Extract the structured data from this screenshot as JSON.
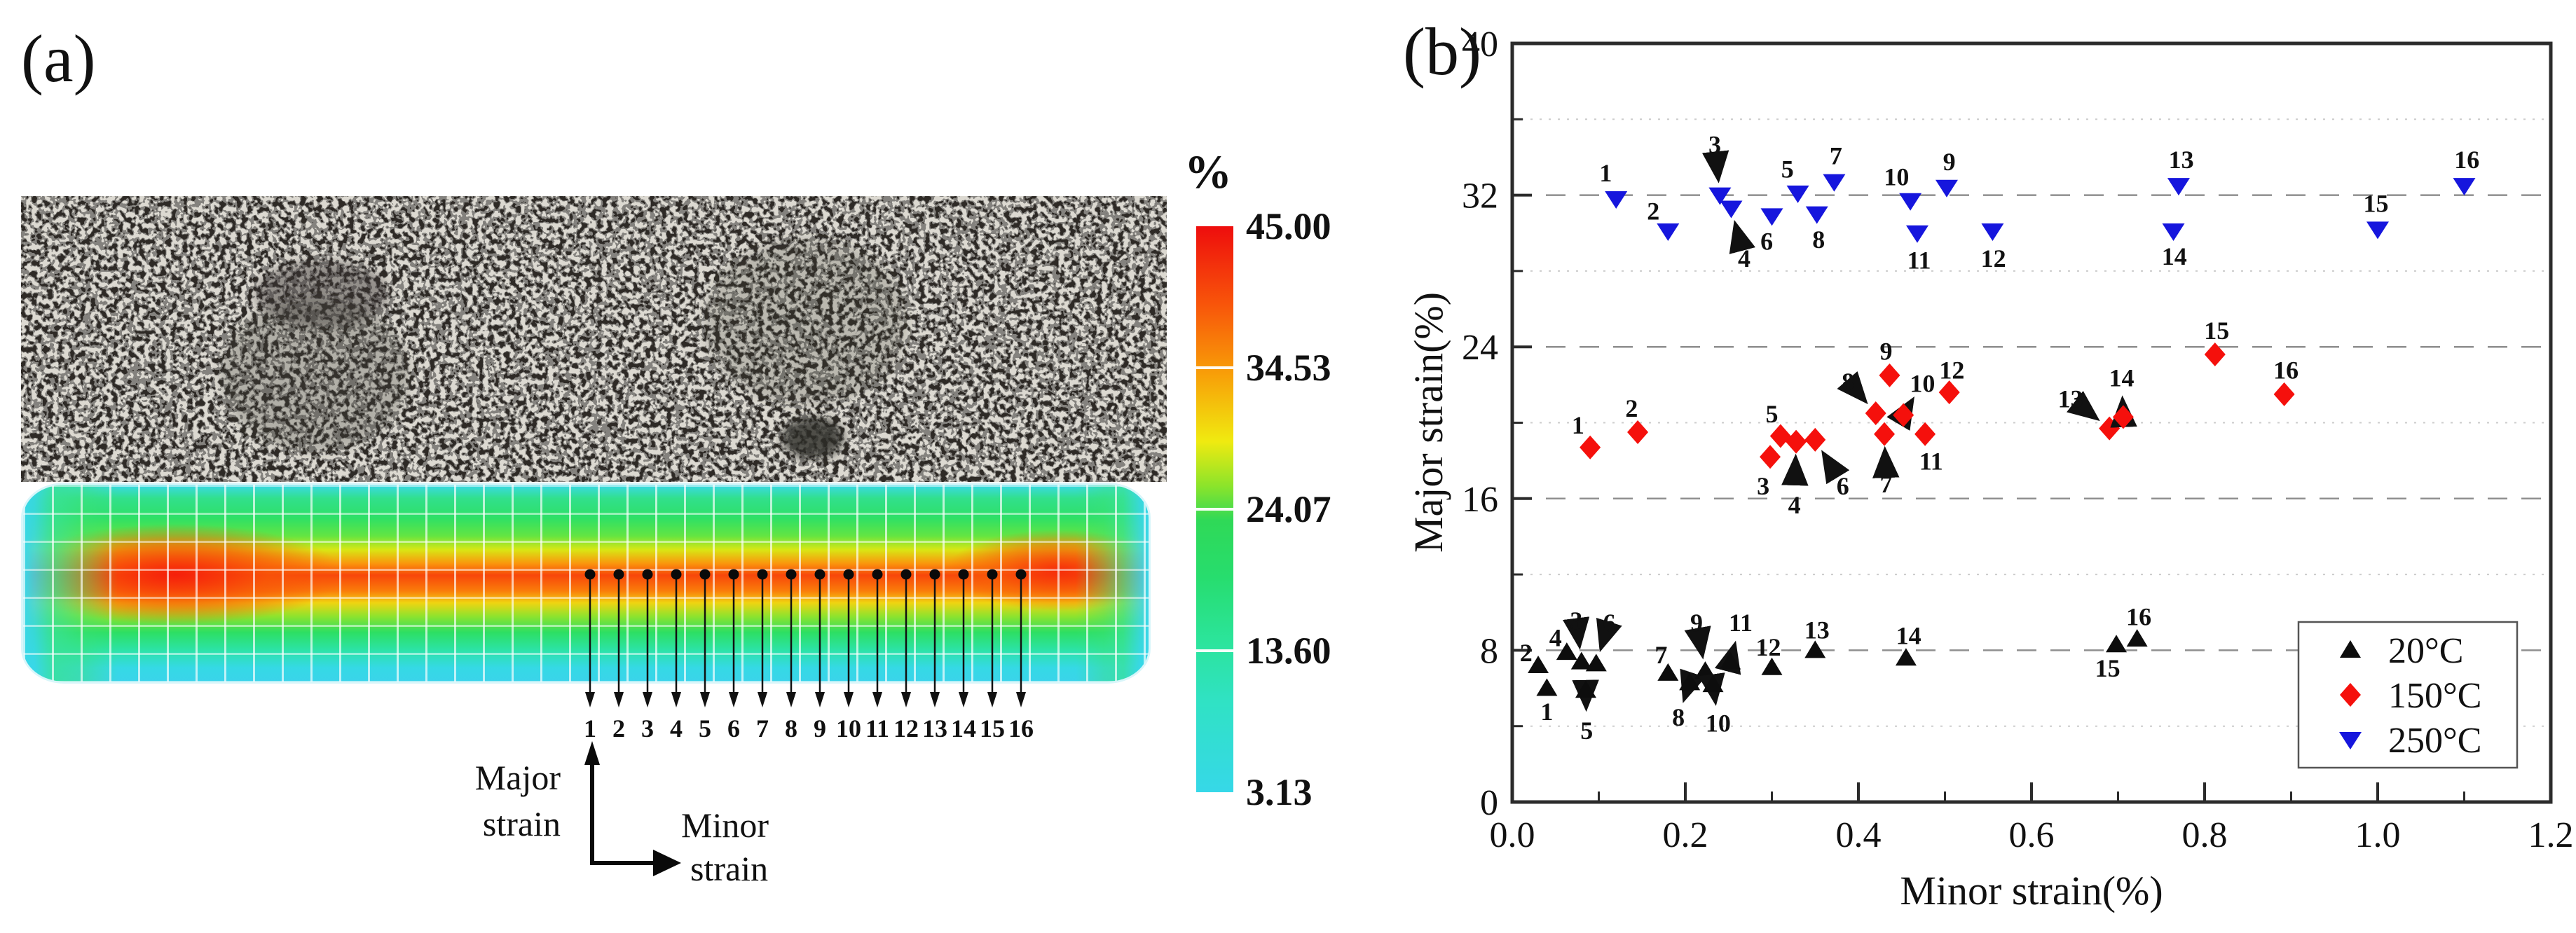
{
  "figure": {
    "panel_a_label": "(a)",
    "panel_b_label": "(b)"
  },
  "panel_a": {
    "colorbar": {
      "unit": "%",
      "tick_labels": [
        "45.00",
        "34.53",
        "24.07",
        "13.60",
        "3.13"
      ]
    },
    "probe_points": [
      "1",
      "2",
      "3",
      "4",
      "5",
      "6",
      "7",
      "8",
      "9",
      "10",
      "11",
      "12",
      "13",
      "14",
      "15",
      "16"
    ],
    "axis_glyph": {
      "major_line1": "Major",
      "major_line2": "strain",
      "minor_line1": "Minor",
      "minor_line2": "strain"
    }
  },
  "chart_data": {
    "type": "scatter",
    "title": "",
    "xlabel": "Minor strain(%)",
    "ylabel": "Major strain(%)",
    "xlim": [
      0,
      1.2
    ],
    "ylim": [
      0,
      40
    ],
    "x_ticks": [
      "0.0",
      "0.2",
      "0.4",
      "0.6",
      "0.8",
      "1.0",
      "1.2"
    ],
    "x_tick_values": [
      0,
      0.2,
      0.4,
      0.6,
      0.8,
      1.0,
      1.2
    ],
    "x_minor_ticks": [
      0.1,
      0.3,
      0.5,
      0.7,
      0.9,
      1.1
    ],
    "y_ticks": [
      "0",
      "8",
      "16",
      "24",
      "32",
      "40"
    ],
    "y_tick_values": [
      0,
      8,
      16,
      24,
      32,
      40
    ],
    "y_minor_ticks": [
      4,
      12,
      20,
      28,
      36
    ],
    "grid": {
      "major_dashed": [
        8,
        16,
        24,
        32
      ],
      "minor_dotted": [
        4,
        12,
        20,
        28,
        36
      ]
    },
    "legend": {
      "position": "lower right",
      "entries": [
        {
          "label": "20°C",
          "marker": "triangle-up",
          "color": "#0d0d0d"
        },
        {
          "label": "150°C",
          "marker": "diamond",
          "color": "#f5100c"
        },
        {
          "label": "250°C",
          "marker": "triangle-down",
          "color": "#1616dd"
        }
      ]
    },
    "series": [
      {
        "name": "20°C",
        "marker": "triangle-up",
        "color": "#0d0d0d",
        "points": [
          {
            "l": "1",
            "x": 0.04,
            "y": 6.0,
            "lx": 0.04,
            "ly": 4.8,
            "a": 0
          },
          {
            "l": "2",
            "x": 0.03,
            "y": 7.2,
            "lx": 0.016,
            "ly": 7.9,
            "a": 0
          },
          {
            "l": "3",
            "x": 0.08,
            "y": 7.4,
            "lx": 0.074,
            "ly": 9.6,
            "a": 1
          },
          {
            "l": "4",
            "x": 0.063,
            "y": 7.9,
            "lx": 0.05,
            "ly": 8.7,
            "a": 0
          },
          {
            "l": "5",
            "x": 0.085,
            "y": 5.9,
            "lx": 0.086,
            "ly": 3.8,
            "a": 1
          },
          {
            "l": "6",
            "x": 0.097,
            "y": 7.3,
            "lx": 0.112,
            "ly": 9.5,
            "a": 1
          },
          {
            "l": "7",
            "x": 0.18,
            "y": 6.8,
            "lx": 0.172,
            "ly": 7.8,
            "a": 0
          },
          {
            "l": "8",
            "x": 0.205,
            "y": 6.3,
            "lx": 0.192,
            "ly": 4.5,
            "a": 1
          },
          {
            "l": "9",
            "x": 0.223,
            "y": 6.9,
            "lx": 0.213,
            "ly": 9.5,
            "a": 1
          },
          {
            "l": "10",
            "x": 0.232,
            "y": 6.2,
            "lx": 0.238,
            "ly": 4.2,
            "a": 1
          },
          {
            "l": "11",
            "x": 0.252,
            "y": 7.4,
            "lx": 0.264,
            "ly": 9.5,
            "a": 1
          },
          {
            "l": "12",
            "x": 0.3,
            "y": 7.1,
            "lx": 0.296,
            "ly": 8.2,
            "a": 0
          },
          {
            "l": "13",
            "x": 0.35,
            "y": 8.0,
            "lx": 0.352,
            "ly": 9.1,
            "a": 0
          },
          {
            "l": "14",
            "x": 0.455,
            "y": 7.6,
            "lx": 0.458,
            "ly": 8.8,
            "a": 0
          },
          {
            "l": "15",
            "x": 0.698,
            "y": 8.3,
            "lx": 0.688,
            "ly": 7.1,
            "a": 0
          },
          {
            "l": "16",
            "x": 0.722,
            "y": 8.6,
            "lx": 0.724,
            "ly": 9.8,
            "a": 0
          }
        ]
      },
      {
        "name": "150°C",
        "marker": "diamond",
        "color": "#f5100c",
        "points": [
          {
            "l": "1",
            "x": 0.09,
            "y": 18.7,
            "lx": 0.076,
            "ly": 19.9,
            "a": 0
          },
          {
            "l": "2",
            "x": 0.145,
            "y": 19.5,
            "lx": 0.138,
            "ly": 20.8,
            "a": 0
          },
          {
            "l": "3",
            "x": 0.298,
            "y": 18.2,
            "lx": 0.29,
            "ly": 16.7,
            "a": 0
          },
          {
            "l": "4",
            "x": 0.328,
            "y": 19.0,
            "lx": 0.326,
            "ly": 15.7,
            "a": 1
          },
          {
            "l": "5",
            "x": 0.31,
            "y": 19.3,
            "lx": 0.3,
            "ly": 20.5,
            "a": 0
          },
          {
            "l": "6",
            "x": 0.35,
            "y": 19.1,
            "lx": 0.382,
            "ly": 16.7,
            "a": 1
          },
          {
            "l": "7",
            "x": 0.43,
            "y": 19.4,
            "lx": 0.432,
            "ly": 16.8,
            "a": 1
          },
          {
            "l": "8",
            "x": 0.42,
            "y": 20.5,
            "lx": 0.388,
            "ly": 22.2,
            "a": 1
          },
          {
            "l": "9",
            "x": 0.436,
            "y": 22.5,
            "lx": 0.432,
            "ly": 23.8,
            "a": 0
          },
          {
            "l": "10",
            "x": 0.452,
            "y": 20.4,
            "lx": 0.474,
            "ly": 22.1,
            "a": 1
          },
          {
            "l": "11",
            "x": 0.477,
            "y": 19.4,
            "lx": 0.484,
            "ly": 18.0,
            "a": 0
          },
          {
            "l": "12",
            "x": 0.505,
            "y": 21.6,
            "lx": 0.508,
            "ly": 22.8,
            "a": 0
          },
          {
            "l": "13",
            "x": 0.69,
            "y": 19.7,
            "lx": 0.645,
            "ly": 21.3,
            "a": 1
          },
          {
            "l": "14",
            "x": 0.706,
            "y": 20.3,
            "lx": 0.704,
            "ly": 22.4,
            "a": 1
          },
          {
            "l": "15",
            "x": 0.812,
            "y": 23.6,
            "lx": 0.814,
            "ly": 24.9,
            "a": 0
          },
          {
            "l": "16",
            "x": 0.892,
            "y": 21.5,
            "lx": 0.894,
            "ly": 22.8,
            "a": 0
          }
        ]
      },
      {
        "name": "250°C",
        "marker": "triangle-down",
        "color": "#1616dd",
        "points": [
          {
            "l": "1",
            "x": 0.12,
            "y": 31.8,
            "lx": 0.108,
            "ly": 33.2,
            "a": 0
          },
          {
            "l": "2",
            "x": 0.18,
            "y": 30.1,
            "lx": 0.163,
            "ly": 31.2,
            "a": 0
          },
          {
            "l": "3",
            "x": 0.24,
            "y": 32.0,
            "lx": 0.234,
            "ly": 34.7,
            "a": 1
          },
          {
            "l": "4",
            "x": 0.253,
            "y": 31.3,
            "lx": 0.268,
            "ly": 28.7,
            "a": 1
          },
          {
            "l": "5",
            "x": 0.33,
            "y": 32.1,
            "lx": 0.318,
            "ly": 33.4,
            "a": 0
          },
          {
            "l": "6",
            "x": 0.3,
            "y": 30.9,
            "lx": 0.294,
            "ly": 29.6,
            "a": 0
          },
          {
            "l": "7",
            "x": 0.372,
            "y": 32.7,
            "lx": 0.374,
            "ly": 34.1,
            "a": 0
          },
          {
            "l": "8",
            "x": 0.352,
            "y": 31.0,
            "lx": 0.354,
            "ly": 29.7,
            "a": 0
          },
          {
            "l": "9",
            "x": 0.502,
            "y": 32.4,
            "lx": 0.505,
            "ly": 33.8,
            "a": 0
          },
          {
            "l": "10",
            "x": 0.46,
            "y": 31.7,
            "lx": 0.444,
            "ly": 33.0,
            "a": 0
          },
          {
            "l": "11",
            "x": 0.468,
            "y": 30.0,
            "lx": 0.47,
            "ly": 28.6,
            "a": 0
          },
          {
            "l": "12",
            "x": 0.555,
            "y": 30.1,
            "lx": 0.556,
            "ly": 28.7,
            "a": 0
          },
          {
            "l": "13",
            "x": 0.77,
            "y": 32.5,
            "lx": 0.773,
            "ly": 33.9,
            "a": 0
          },
          {
            "l": "14",
            "x": 0.764,
            "y": 30.1,
            "lx": 0.765,
            "ly": 28.8,
            "a": 0
          },
          {
            "l": "15",
            "x": 1.0,
            "y": 30.2,
            "lx": 0.998,
            "ly": 31.6,
            "a": 0
          },
          {
            "l": "16",
            "x": 1.1,
            "y": 32.5,
            "lx": 1.103,
            "ly": 33.9,
            "a": 0
          }
        ]
      }
    ]
  }
}
